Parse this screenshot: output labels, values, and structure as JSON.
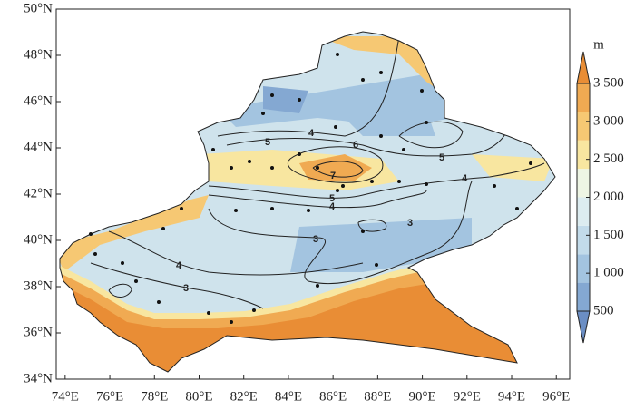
{
  "map": {
    "lon_range": [
      73.6,
      96.6
    ],
    "lat_range": [
      34,
      50
    ],
    "lon_ticks": [
      {
        "value": 74,
        "label": "74°E"
      },
      {
        "value": 76,
        "label": "76°E"
      },
      {
        "value": 78,
        "label": "78°E"
      },
      {
        "value": 80,
        "label": "80°E"
      },
      {
        "value": 82,
        "label": "82°E"
      },
      {
        "value": 84,
        "label": "84°E"
      },
      {
        "value": 86,
        "label": "86°E"
      },
      {
        "value": 88,
        "label": "88°E"
      },
      {
        "value": 90,
        "label": "90°E"
      },
      {
        "value": 92,
        "label": "92°E"
      },
      {
        "value": 94,
        "label": "94°E"
      },
      {
        "value": 96,
        "label": "96°E"
      }
    ],
    "lat_ticks": [
      {
        "value": 34,
        "label": "34°N"
      },
      {
        "value": 36,
        "label": "36°N"
      },
      {
        "value": 38,
        "label": "38°N"
      },
      {
        "value": 40,
        "label": "40°N"
      },
      {
        "value": 42,
        "label": "42°N"
      },
      {
        "value": 44,
        "label": "44°N"
      },
      {
        "value": 46,
        "label": "46°N"
      },
      {
        "value": 48,
        "label": "48°N"
      },
      {
        "value": 50,
        "label": "50°N"
      }
    ],
    "colorbar": {
      "unit": "m",
      "range": [
        500,
        3500
      ],
      "ticks": [
        {
          "value": 500,
          "label": "500"
        },
        {
          "value": 1000,
          "label": "1 000"
        },
        {
          "value": 1500,
          "label": "1 500"
        },
        {
          "value": 2000,
          "label": "2 000"
        },
        {
          "value": 2500,
          "label": "2 500"
        },
        {
          "value": 3000,
          "label": "3 000"
        },
        {
          "value": 3500,
          "label": "3 500"
        }
      ],
      "colors": [
        "#6b8ec4",
        "#84a8d2",
        "#a3c4e0",
        "#c2dbea",
        "#dcecf0",
        "#eef5e4",
        "#f8e6a0",
        "#f6c873",
        "#f0aa52",
        "#e98d35"
      ]
    },
    "contour_labels": [
      "4",
      "5",
      "6",
      "7",
      "5",
      "4",
      "5",
      "4",
      "3",
      "3",
      "4",
      "3"
    ]
  }
}
